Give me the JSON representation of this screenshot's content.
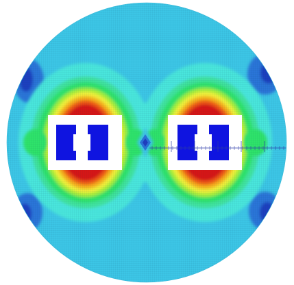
{
  "figure": {
    "type": "finite-element magnetic field contour plot",
    "colormap": [
      "#1f3fbf",
      "#3f8fe8",
      "#3ccfe8",
      "#48e6c8",
      "#2ee36a",
      "#a6f03a",
      "#f3f23a",
      "#f7b21c",
      "#f05a14",
      "#d61818"
    ],
    "background_field_color": "#3cc6e6",
    "conductor_color": "#0f14e0",
    "core_window_color": "#ffffff",
    "mesh_visible": true,
    "measurement_line": {
      "orientation": "horizontal",
      "text": "",
      "color": "#2a3aa8"
    },
    "coils": [
      {
        "name": "left",
        "conductors": 2
      },
      {
        "name": "right",
        "conductors": 2
      }
    ]
  }
}
